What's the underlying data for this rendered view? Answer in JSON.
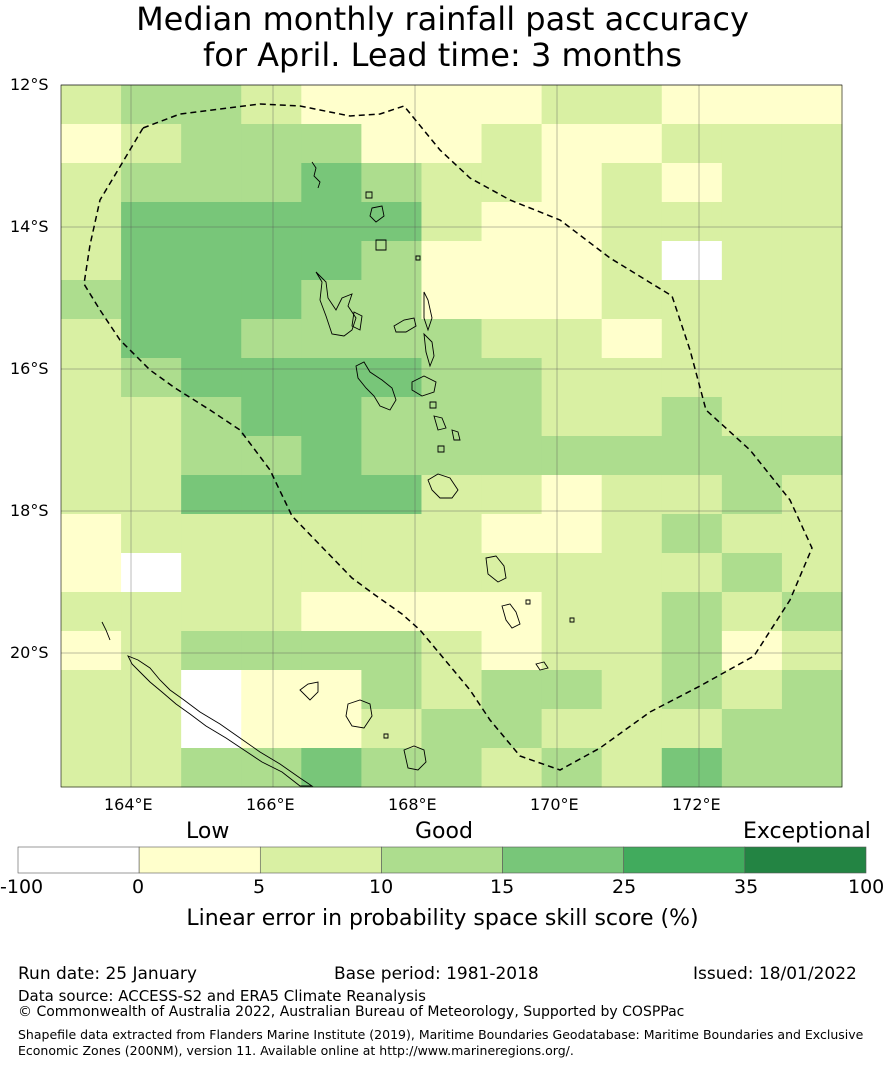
{
  "title": {
    "line1": "Median monthly rainfall past accuracy",
    "line2": "for April. Lead time: 3 months"
  },
  "map": {
    "lat_labels": [
      "12°S",
      "14°S",
      "16°S",
      "18°S",
      "20°S"
    ],
    "lon_labels": [
      "164°E",
      "166°E",
      "168°E",
      "170°E",
      "172°E"
    ],
    "boundary": "Vanuatu EEZ (dashed)"
  },
  "colorbar": {
    "category_words": [
      "Low",
      "Good",
      "Exceptional"
    ],
    "tick_labels": [
      "-100",
      "0",
      "5",
      "10",
      "15",
      "25",
      "35",
      "100"
    ],
    "colors": [
      "#ffffff",
      "#ffffcc",
      "#d9f0a3",
      "#addd8e",
      "#78c679",
      "#41ab5d",
      "#238443"
    ],
    "axis_label": "Linear error in probability space skill score (%)"
  },
  "footer": {
    "run_date": "Run date: 25 January",
    "base_period": "Base period: 1981-2018",
    "issued": "Issued: 18/01/2022",
    "data_source": "Data source: ACCESS-S2 and ERA5 Climate Reanalysis",
    "copyright": "© Commonwealth of Australia 2022, Australian Bureau of Meteorology, Supported by COSPPac",
    "shapefile": "Shapefile data extracted from Flanders Marine Institute (2019), Maritime Boundaries Geodatabase: Maritime Boundaries and Exclusive Economic Zones (200NM), version 11. Available online at http://www.marineregions.org/."
  }
}
